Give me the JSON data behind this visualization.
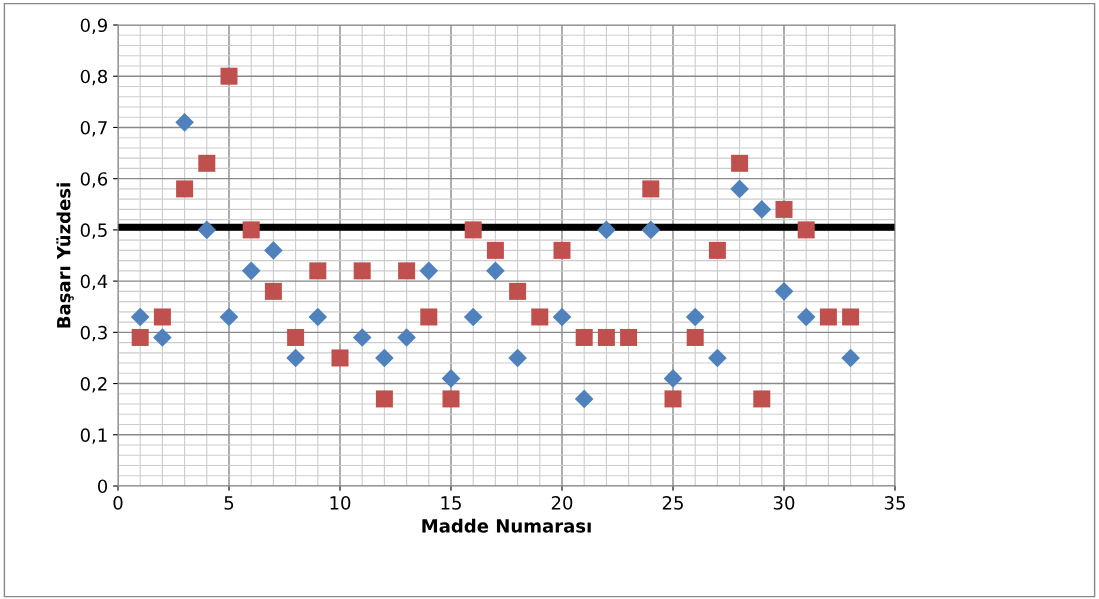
{
  "chart_data": {
    "type": "scatter",
    "xlabel": "Madde Numarası",
    "ylabel": "Başarı Yüzdesi",
    "x": [
      1,
      2,
      3,
      4,
      5,
      6,
      7,
      8,
      9,
      10,
      11,
      12,
      13,
      14,
      15,
      16,
      17,
      18,
      19,
      20,
      21,
      22,
      23,
      24,
      25,
      26,
      27,
      28,
      29,
      30,
      31,
      32,
      33
    ],
    "series": [
      {
        "color": "#4f81bd",
        "marker": "diamond",
        "values": [
          0.33,
          0.29,
          0.71,
          0.5,
          0.33,
          0.42,
          0.46,
          0.25,
          0.33,
          null,
          0.29,
          0.25,
          0.29,
          0.42,
          0.21,
          0.33,
          0.42,
          0.25,
          null,
          0.33,
          0.17,
          0.5,
          null,
          0.5,
          0.21,
          0.33,
          0.25,
          0.58,
          0.54,
          0.38,
          0.33,
          null,
          0.25
        ]
      },
      {
        "color": "#c0504d",
        "marker": "square",
        "values": [
          0.29,
          0.33,
          0.58,
          0.63,
          0.8,
          0.5,
          0.38,
          0.29,
          0.42,
          0.25,
          0.42,
          0.17,
          0.42,
          0.33,
          0.17,
          0.5,
          0.46,
          0.38,
          0.33,
          0.46,
          0.29,
          0.29,
          0.29,
          0.58,
          0.17,
          0.29,
          0.46,
          0.63,
          0.17,
          0.54,
          0.5,
          0.33,
          0.33
        ]
      }
    ],
    "ref_lines": [
      {
        "axis": "y",
        "value": 0.505,
        "color": "#000000",
        "line_style": "solid"
      }
    ],
    "xlim": [
      0,
      35
    ],
    "xticks": [
      0,
      5,
      10,
      15,
      20,
      25,
      30,
      35
    ],
    "ylim": [
      0,
      0.9
    ],
    "yticks": [
      {
        "value": 0,
        "label": "0"
      },
      {
        "value": 0.1,
        "label": "0,1"
      },
      {
        "value": 0.2,
        "label": "0,2"
      },
      {
        "value": 0.3,
        "label": "0,3"
      },
      {
        "value": 0.4,
        "label": "0,4"
      },
      {
        "value": 0.5,
        "label": "0,5"
      },
      {
        "value": 0.6,
        "label": "0,6"
      },
      {
        "value": 0.7,
        "label": "0,7"
      },
      {
        "value": 0.8,
        "label": "0,8"
      },
      {
        "value": 0.9,
        "label": "0,9"
      }
    ],
    "grid": true
  }
}
